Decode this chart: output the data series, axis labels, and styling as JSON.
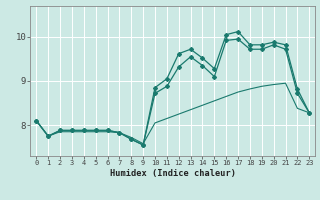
{
  "xlabel": "Humidex (Indice chaleur)",
  "background_color": "#cce9e4",
  "grid_color": "#ffffff",
  "line_color": "#1a7a6e",
  "xlim": [
    -0.5,
    23.5
  ],
  "ylim": [
    7.3,
    10.7
  ],
  "xticks": [
    0,
    1,
    2,
    3,
    4,
    5,
    6,
    7,
    8,
    9,
    10,
    11,
    12,
    13,
    14,
    15,
    16,
    17,
    18,
    19,
    20,
    21,
    22,
    23
  ],
  "yticks": [
    8,
    9,
    10
  ],
  "line1": [
    8.1,
    7.75,
    7.88,
    7.88,
    7.88,
    7.88,
    7.88,
    7.83,
    7.68,
    7.55,
    8.85,
    9.05,
    9.62,
    9.72,
    9.52,
    9.28,
    10.05,
    10.12,
    9.82,
    9.82,
    9.88,
    9.82,
    8.82,
    8.28
  ],
  "line2": [
    8.1,
    7.75,
    7.88,
    7.88,
    7.88,
    7.88,
    7.88,
    7.83,
    7.68,
    7.55,
    8.72,
    8.88,
    9.32,
    9.55,
    9.35,
    9.1,
    9.92,
    9.95,
    9.72,
    9.72,
    9.82,
    9.72,
    8.72,
    8.28
  ],
  "line3": [
    8.1,
    7.75,
    7.85,
    7.85,
    7.85,
    7.85,
    7.85,
    7.83,
    7.72,
    7.58,
    8.05,
    8.15,
    8.25,
    8.35,
    8.45,
    8.55,
    8.65,
    8.75,
    8.82,
    8.88,
    8.92,
    8.95,
    8.38,
    8.28
  ]
}
